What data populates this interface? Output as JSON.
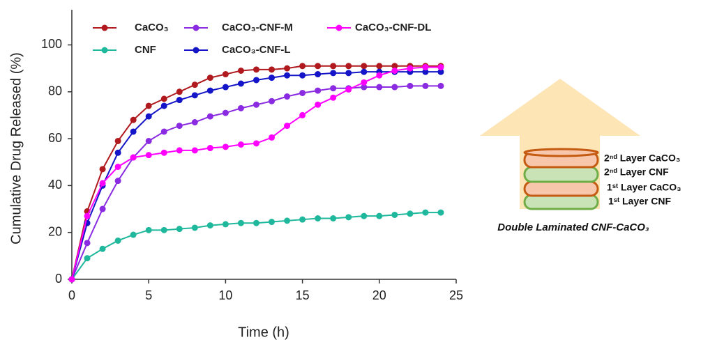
{
  "chart_data": {
    "type": "line",
    "x_label": "Time (h)",
    "y_label": "Cumulative Drug Released (%)",
    "xlim": [
      0,
      25
    ],
    "ylim": [
      0,
      115
    ],
    "xticks": [
      0,
      5,
      10,
      15,
      20,
      25
    ],
    "yticks": [
      0,
      20,
      40,
      60,
      80,
      100
    ],
    "x": [
      0,
      1,
      2,
      3,
      4,
      5,
      6,
      7,
      8,
      9,
      10,
      11,
      12,
      13,
      14,
      15,
      16,
      17,
      18,
      19,
      20,
      21,
      22,
      23,
      24
    ],
    "series": [
      {
        "name": "CaCO₃",
        "color": "#b0191e",
        "values": [
          0,
          29,
          47,
          59,
          68,
          74,
          77,
          80,
          83,
          86,
          87.5,
          89,
          89.5,
          89.5,
          90,
          91,
          91,
          91,
          91,
          91,
          91,
          91,
          91,
          91,
          91
        ]
      },
      {
        "name": "CNF",
        "color": "#1fb89c",
        "values": [
          0,
          9,
          13,
          16.5,
          19,
          21,
          21,
          21.5,
          22,
          23,
          23.5,
          24,
          24,
          24.5,
          25,
          25.5,
          26,
          26,
          26.5,
          27,
          27,
          27.5,
          28,
          28.5,
          28.5
        ]
      },
      {
        "name": "CaCO₃-CNF-M",
        "color": "#8a2be2",
        "values": [
          0,
          15.5,
          30,
          42,
          52,
          59,
          63,
          65.5,
          67,
          69.5,
          71,
          73,
          74.5,
          76,
          78,
          79.5,
          80.5,
          81.5,
          81.5,
          82,
          82,
          82,
          82.5,
          82.5,
          82.5
        ]
      },
      {
        "name": "CaCO₃-CNF-L",
        "color": "#1414c8",
        "values": [
          0,
          24,
          40,
          54,
          63,
          69.5,
          74,
          76.5,
          78.5,
          80.5,
          82,
          83.5,
          85,
          86,
          87,
          87,
          87.5,
          88,
          88,
          88.5,
          88.5,
          88.5,
          88.5,
          88.5,
          88.5
        ]
      },
      {
        "name": "CaCO₃-CNF-DL",
        "color": "#ff00ff",
        "values": [
          0,
          27,
          41,
          48,
          52,
          53,
          54,
          55,
          55,
          56,
          56.5,
          57.5,
          58,
          60.5,
          65.5,
          70,
          74.5,
          77.5,
          81,
          84,
          87,
          89,
          90,
          90.5,
          90.5
        ]
      }
    ]
  },
  "diagram": {
    "layers": [
      "2ⁿᵈ Layer CaCO₃",
      "2ⁿᵈ Layer CNF",
      "1ˢᵗ Layer CaCO₃",
      "1ˢᵗ Layer CNF"
    ],
    "caption": "Double Laminated CNF-CaCO₃"
  }
}
